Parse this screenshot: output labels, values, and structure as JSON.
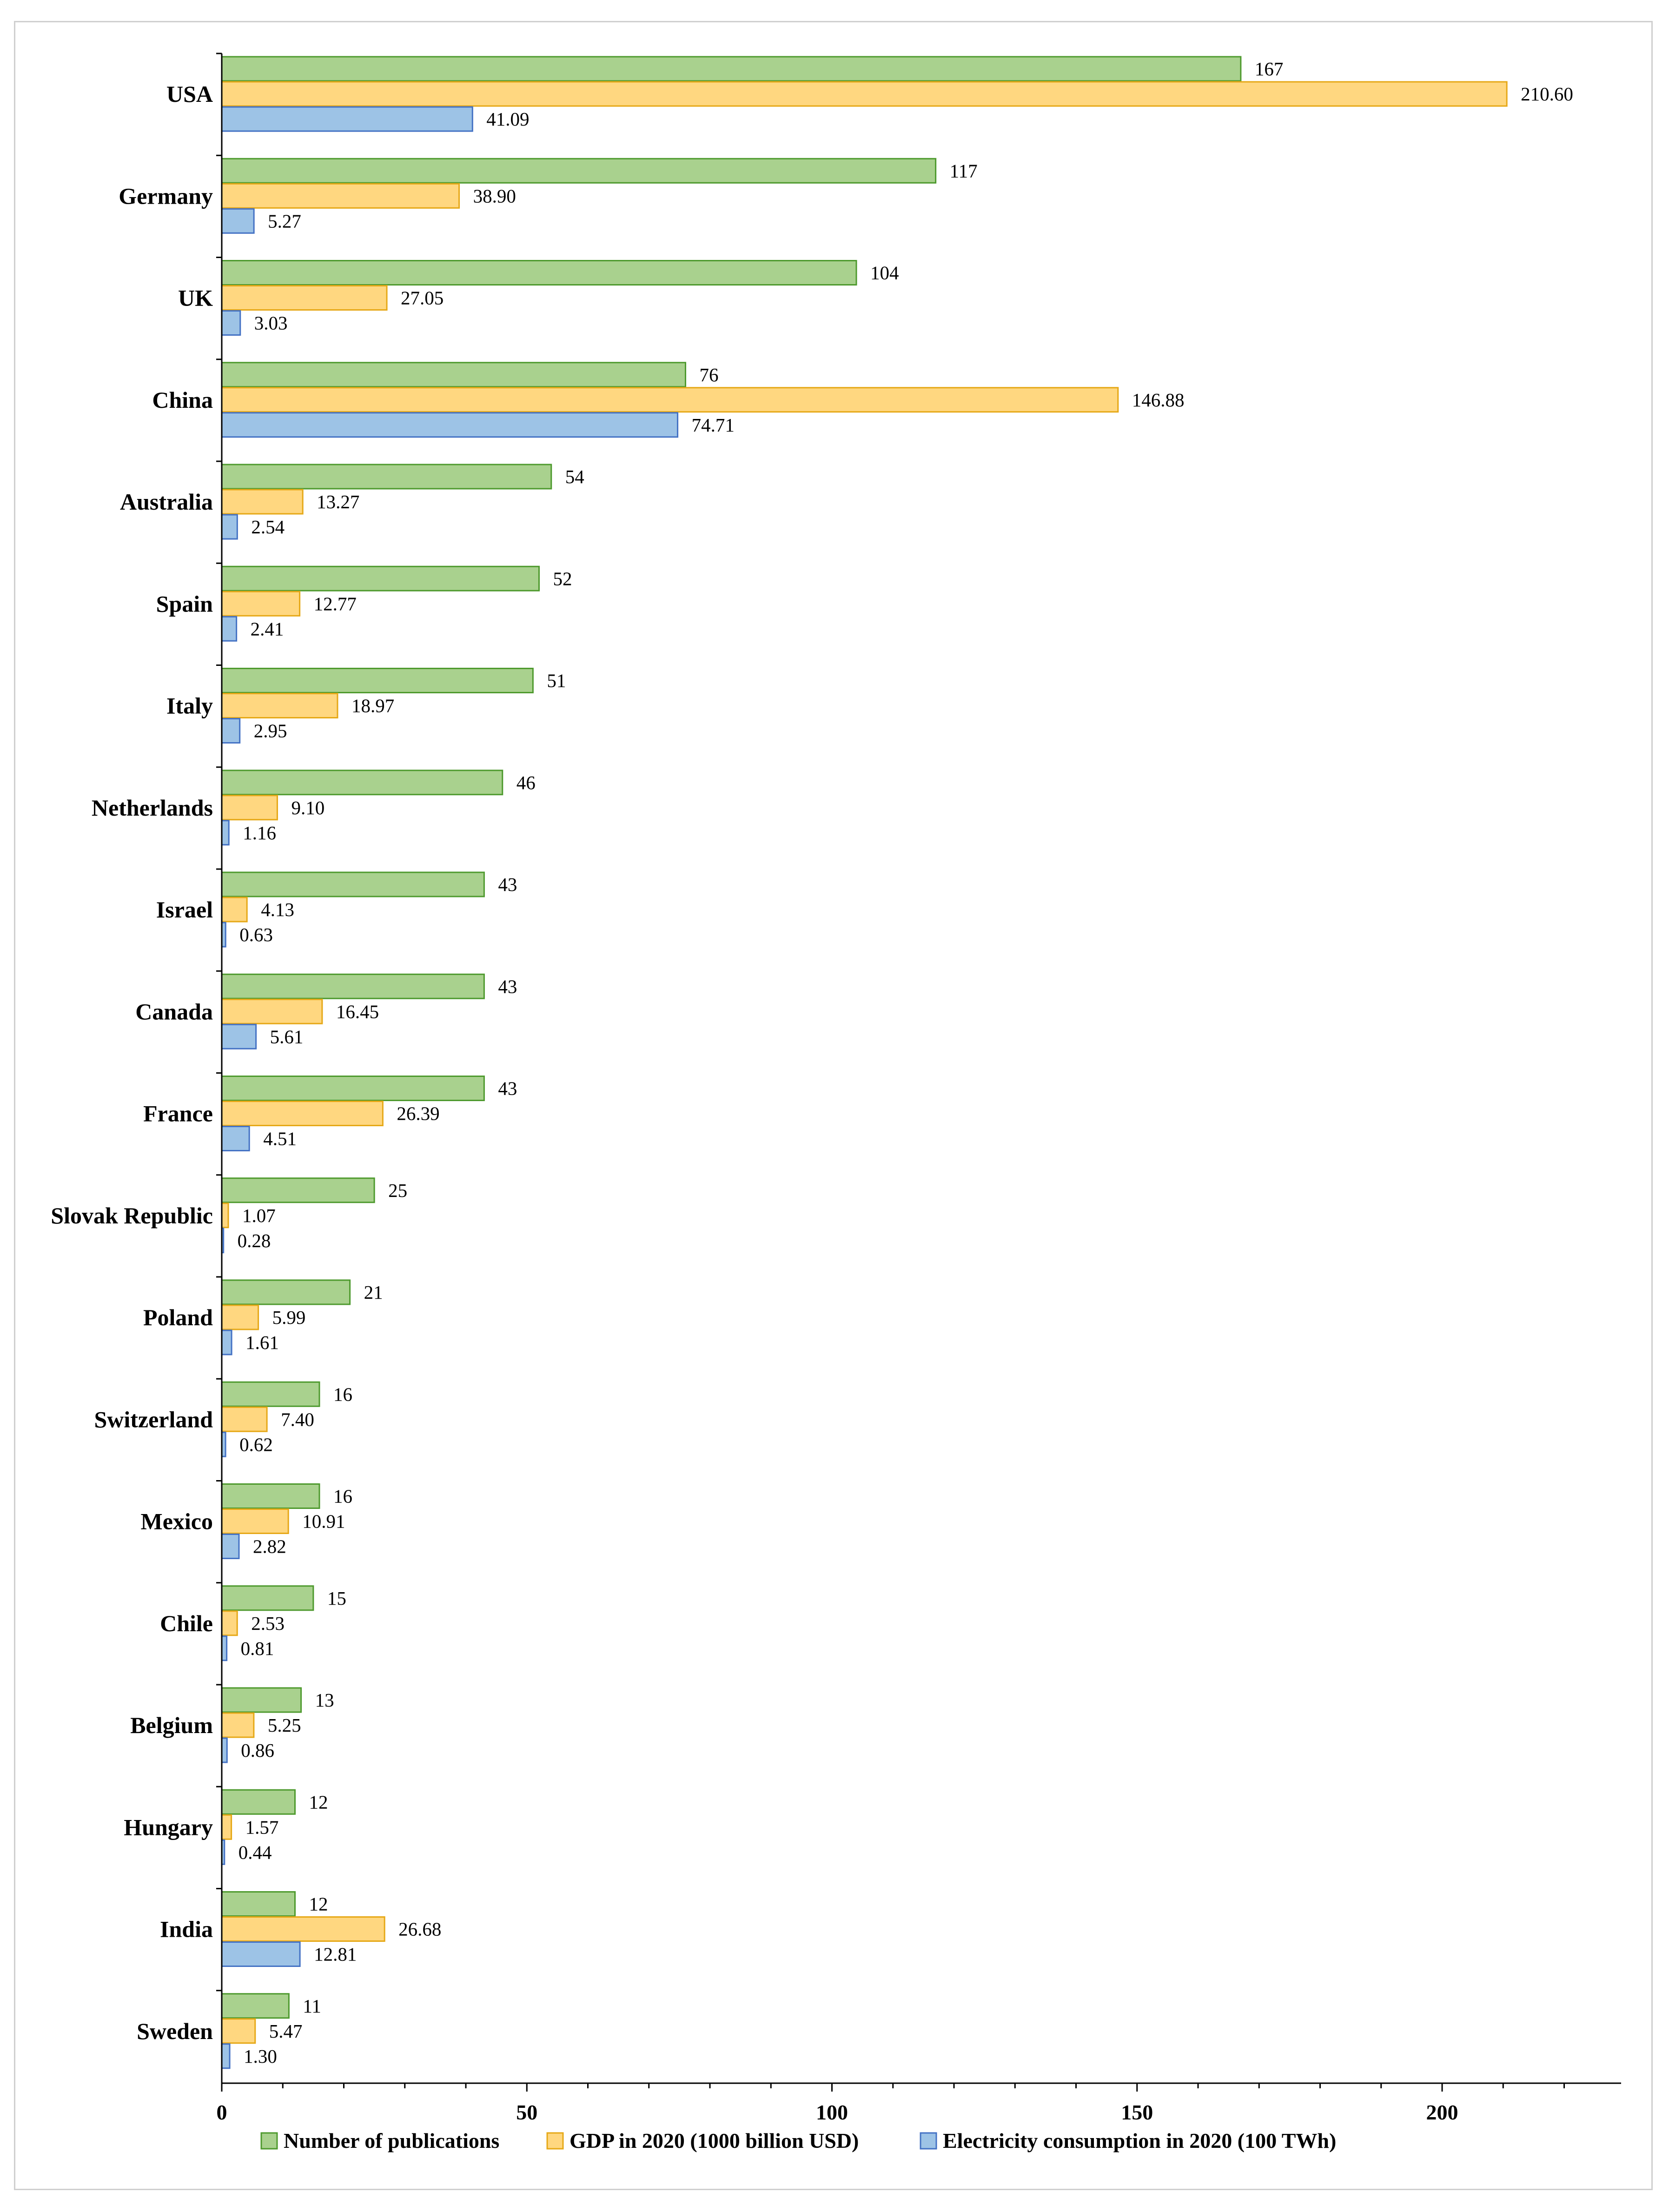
{
  "chart_data": {
    "type": "bar",
    "orientation": "horizontal",
    "title": "",
    "xlabel": "",
    "ylabel": "",
    "xlim": [
      0,
      230
    ],
    "xticks": [
      0,
      50,
      100,
      150,
      200
    ],
    "grid": false,
    "legend_position": "bottom",
    "categories": [
      "USA",
      "Germany",
      "UK",
      "China",
      "Australia",
      "Spain",
      "Italy",
      "Netherlands",
      "Israel",
      "Canada",
      "France",
      "Slovak Republic",
      "Poland",
      "Switzerland",
      "Mexico",
      "Chile",
      "Belgium",
      "Hungary",
      "India",
      "Sweden"
    ],
    "series": [
      {
        "name": "Number of publications",
        "color": "#a9d18e",
        "stroke": "#4e9a2e",
        "values": [
          167,
          117,
          104,
          76,
          54,
          52,
          51,
          46,
          43,
          43,
          43,
          25,
          21,
          16,
          16,
          15,
          13,
          12,
          12,
          11
        ],
        "labels": [
          "167",
          "117",
          "104",
          "76",
          "54",
          "52",
          "51",
          "46",
          "43",
          "43",
          "43",
          "25",
          "21",
          "16",
          "16",
          "15",
          "13",
          "12",
          "12",
          "11"
        ]
      },
      {
        "name": "GDP in 2020 (1000 billion USD)",
        "color": "#ffd780",
        "stroke": "#e6a817",
        "values": [
          210.6,
          38.9,
          27.05,
          146.88,
          13.27,
          12.77,
          18.97,
          9.1,
          4.13,
          16.45,
          26.39,
          1.07,
          5.99,
          7.4,
          10.91,
          2.53,
          5.25,
          1.57,
          26.68,
          5.47
        ],
        "labels": [
          "210.60",
          "38.90",
          "27.05",
          "146.88",
          "13.27",
          "12.77",
          "18.97",
          "9.10",
          "4.13",
          "16.45",
          "26.39",
          "1.07",
          "5.99",
          "7.40",
          "10.91",
          "2.53",
          "5.25",
          "1.57",
          "26.68",
          "5.47"
        ]
      },
      {
        "name": "Electricity consumption in 2020 (100 TWh)",
        "color": "#9dc3e6",
        "stroke": "#4472c4",
        "values": [
          41.09,
          5.27,
          3.03,
          74.71,
          2.54,
          2.41,
          2.95,
          1.16,
          0.63,
          5.61,
          4.51,
          0.28,
          1.61,
          0.62,
          2.82,
          0.81,
          0.86,
          0.44,
          12.81,
          1.3
        ],
        "labels": [
          "41.09",
          "5.27",
          "3.03",
          "74.71",
          "2.54",
          "2.41",
          "2.95",
          "1.16",
          "0.63",
          "5.61",
          "4.51",
          "0.28",
          "1.61",
          "0.62",
          "2.82",
          "0.81",
          "0.86",
          "0.44",
          "12.81",
          "1.30"
        ]
      }
    ]
  }
}
